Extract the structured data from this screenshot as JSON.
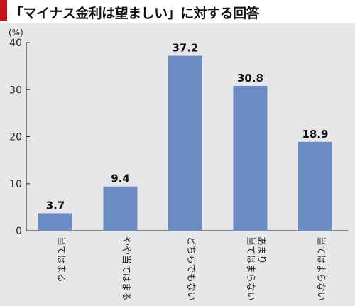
{
  "title": "「マイナス金利は望ましい」に対する回答",
  "colors": {
    "accent": "#c8131a",
    "bar": "#6a8cc3",
    "background": "#e7e7ea"
  },
  "chart_data": {
    "type": "bar",
    "title": "「マイナス金利は望ましい」に対する回答",
    "ylabel": "(%)",
    "ylim": [
      0,
      40
    ],
    "yticks": [
      0,
      10,
      20,
      30,
      40
    ],
    "grid": false,
    "categories": [
      [
        "当てはまる"
      ],
      [
        "やや当てはまる"
      ],
      [
        "どちらでもない"
      ],
      [
        "あまり",
        "当てはまらない"
      ],
      [
        "当てはまらない"
      ]
    ],
    "values": [
      3.7,
      9.4,
      37.2,
      30.8,
      18.9
    ]
  }
}
